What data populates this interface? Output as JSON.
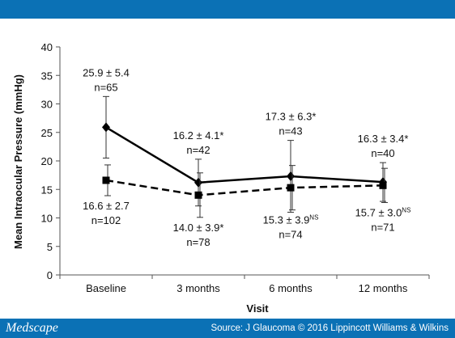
{
  "header": {
    "accent_color": "#0b71b5"
  },
  "footer": {
    "brand": "Medscape",
    "source": "Source: J Glaucoma © 2016 Lippincott Williams & Wilkins"
  },
  "chart_data": {
    "type": "line",
    "xlabel": "Visit",
    "ylabel": "Mean Intraocular Pressure (mmHg)",
    "ylim": [
      0,
      40
    ],
    "yticks": [
      0,
      5,
      10,
      15,
      20,
      25,
      30,
      35,
      40
    ],
    "categories": [
      "Baseline",
      "3 months",
      "6 months",
      "12 months"
    ],
    "grid": false,
    "series": [
      {
        "style": "solid",
        "marker": "diamond",
        "color": "#000000",
        "values": [
          25.9,
          16.2,
          17.3,
          16.3
        ],
        "errors": [
          5.4,
          4.1,
          6.3,
          3.4
        ],
        "labels": [
          {
            "main": "25.9 ± 5.4",
            "sup": "",
            "n": "n=65"
          },
          {
            "main": "16.2 ± 4.1*",
            "sup": "",
            "n": "n=42"
          },
          {
            "main": "17.3 ± 6.3*",
            "sup": "",
            "n": "n=43"
          },
          {
            "main": "16.3 ± 3.4*",
            "sup": "",
            "n": "n=40"
          }
        ]
      },
      {
        "style": "dashed",
        "marker": "square",
        "color": "#000000",
        "values": [
          16.6,
          14.0,
          15.3,
          15.7
        ],
        "errors": [
          2.7,
          3.9,
          3.9,
          3.0
        ],
        "labels": [
          {
            "main": "16.6 ± 2.7",
            "sup": "",
            "n": "n=102"
          },
          {
            "main": "14.0 ± 3.9*",
            "sup": "",
            "n": "n=78"
          },
          {
            "main": "15.3 ± 3.9",
            "sup": "NS",
            "n": "n=74"
          },
          {
            "main": "15.7 ± 3.0",
            "sup": "NS",
            "n": "n=71"
          }
        ]
      }
    ]
  }
}
